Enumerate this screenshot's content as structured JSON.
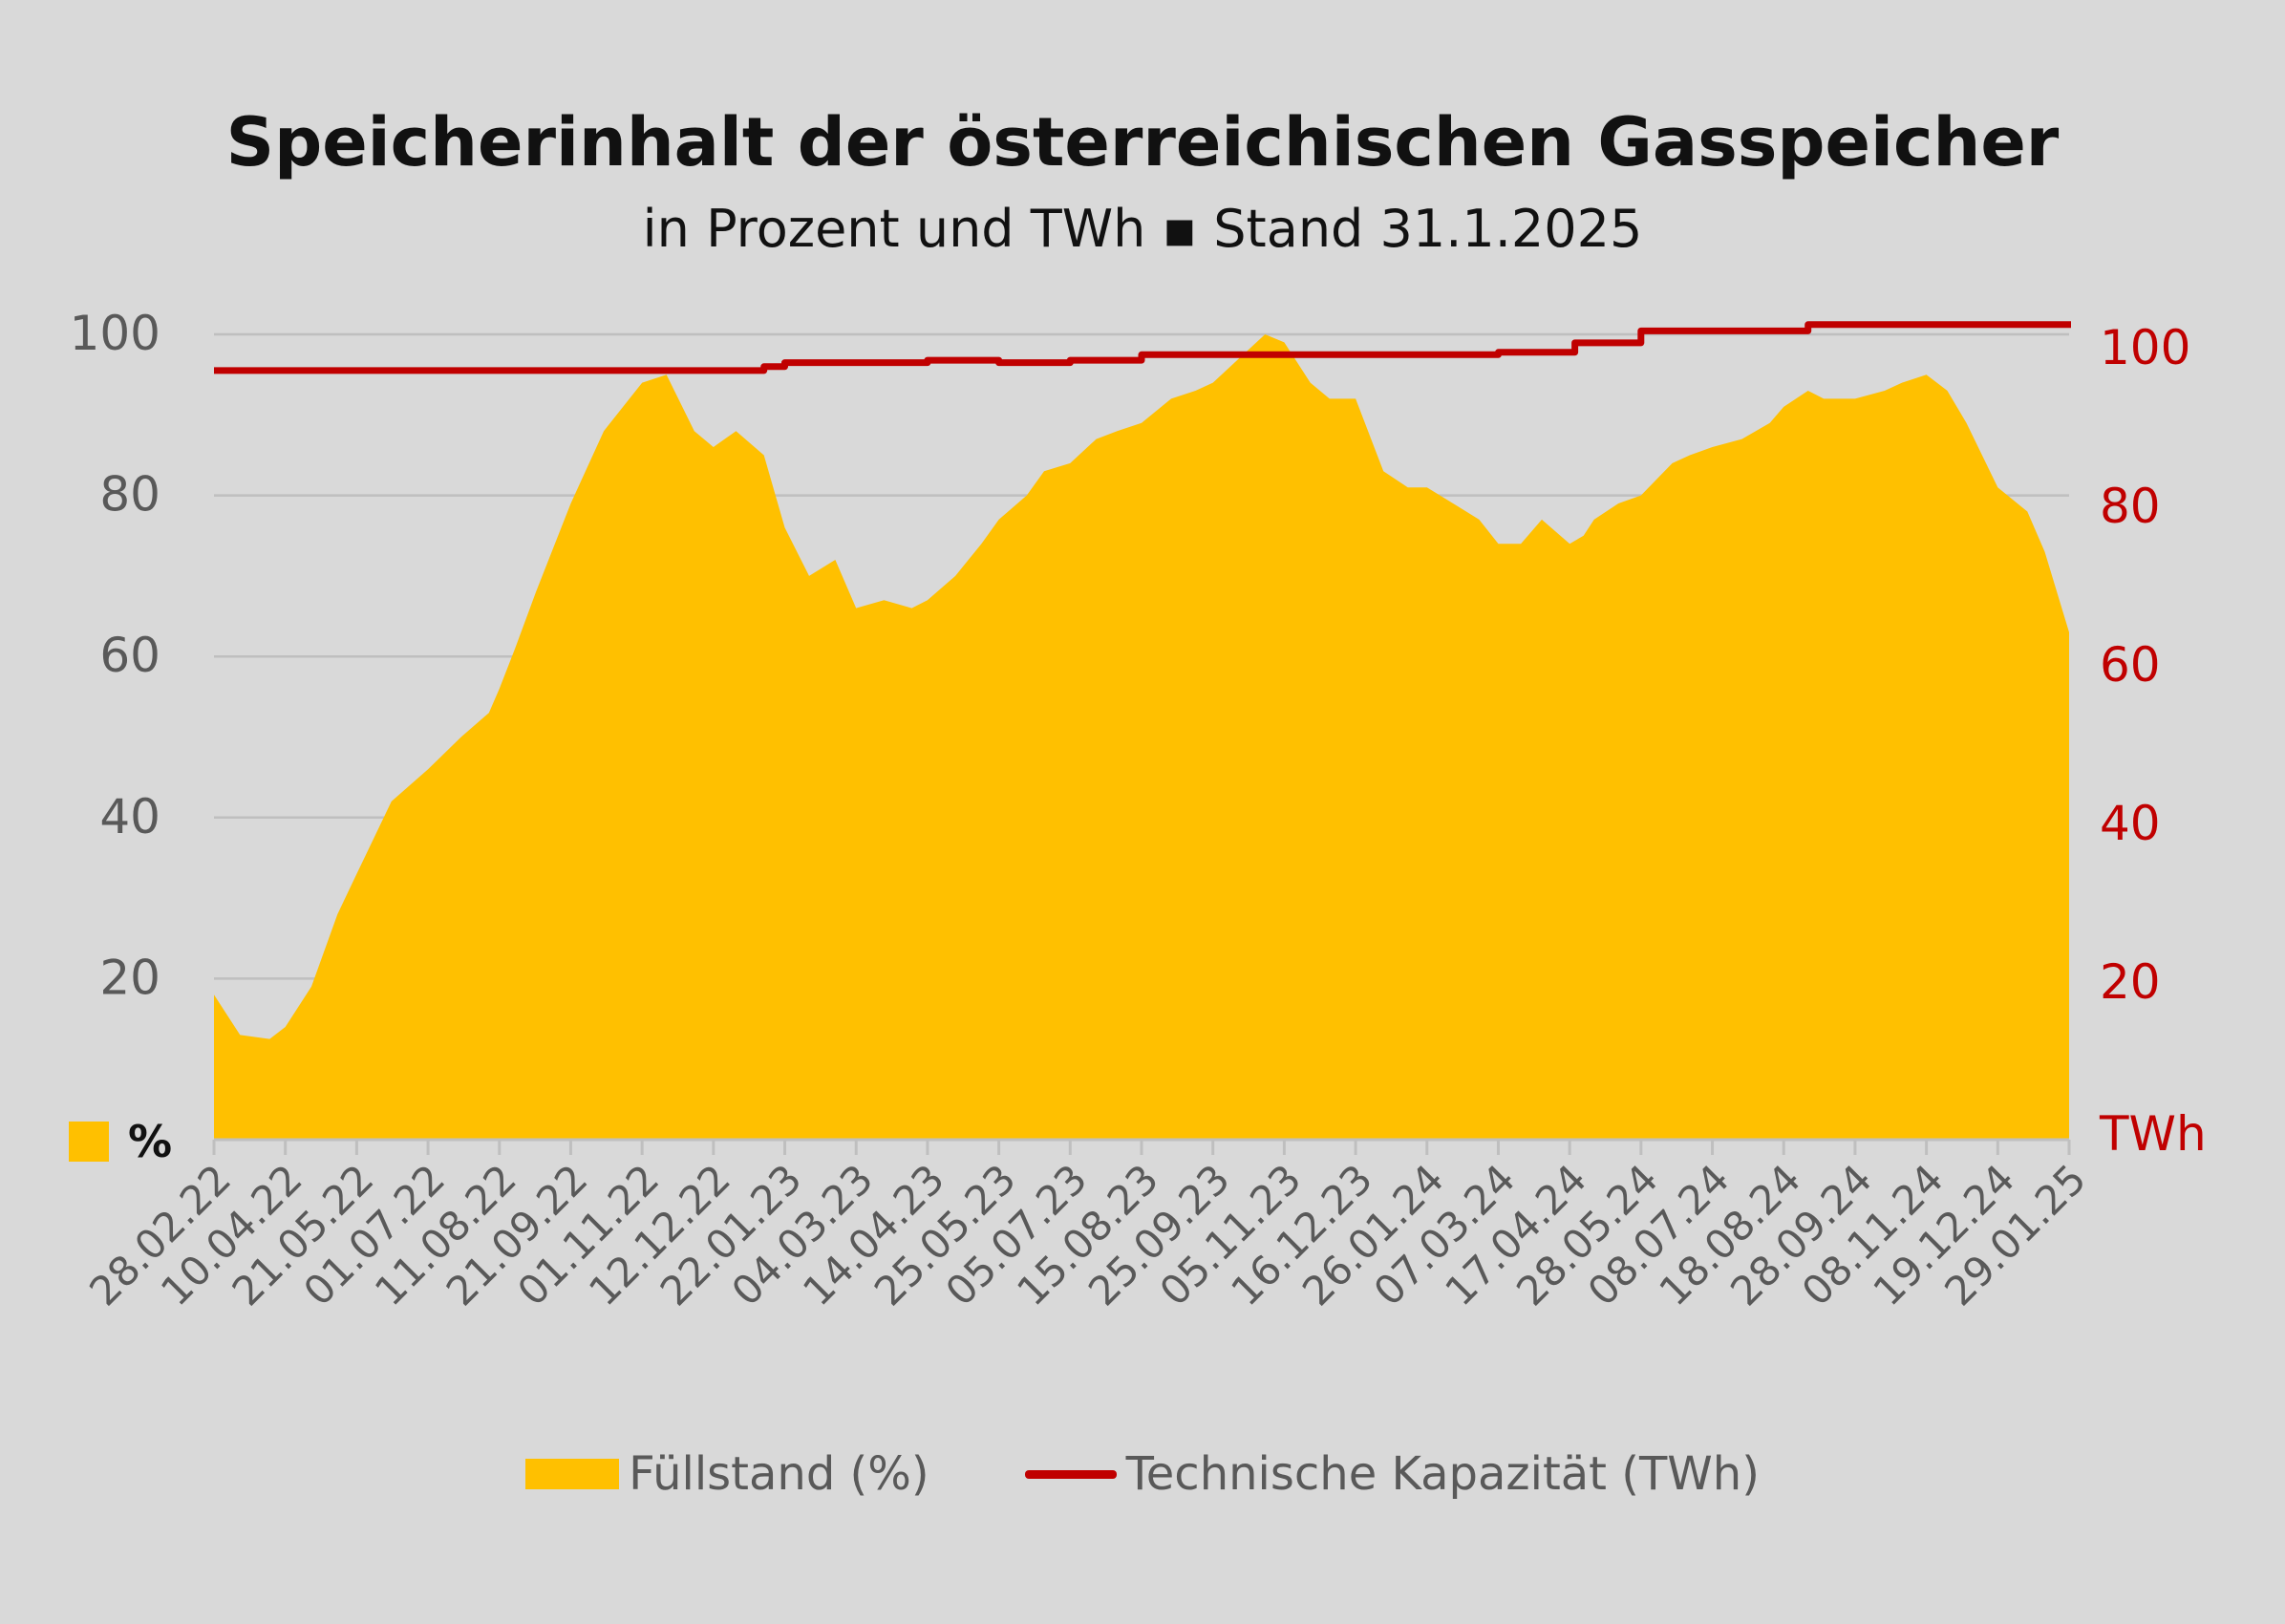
{
  "chart_data": {
    "type": "area",
    "title": "Speicherinhalt der österreichischen Gasspeicher",
    "subtitle": "in Prozent und TWh ▪ Stand 31.1.2025",
    "x_tick_labels": [
      "28.02.22",
      "10.04.22",
      "21.05.22",
      "01.07.22",
      "11.08.22",
      "21.09.22",
      "01.11.22",
      "12.12.22",
      "22.01.23",
      "04.03.23",
      "14.04.23",
      "25.05.23",
      "05.07.23",
      "15.08.23",
      "25.09.23",
      "05.11.23",
      "16.12.23",
      "26.01.24",
      "07.03.24",
      "17.04.24",
      "28.05.24",
      "08.07.24",
      "18.08.24",
      "28.09.24",
      "08.11.24",
      "19.12.24",
      "29.01.25"
    ],
    "y_left": {
      "ticks": [
        20,
        40,
        60,
        80,
        100
      ],
      "ylim": [
        0,
        100
      ],
      "unit": "%"
    },
    "y_right": {
      "ticks": [
        20,
        40,
        60,
        80,
        100
      ],
      "ylim": [
        0,
        102.5
      ],
      "unit": "TWh"
    },
    "grid": true,
    "legend_position": "bottom",
    "series": [
      {
        "name": "Füllstand (%)",
        "type": "area",
        "axis": "left",
        "color": "#ffc000",
        "x": [
          "28.02.22",
          "15.03.22",
          "01.04.22",
          "10.04.22",
          "25.04.22",
          "10.05.22",
          "21.05.22",
          "10.06.22",
          "01.07.22",
          "20.07.22",
          "05.08.22",
          "11.08.22",
          "20.08.22",
          "01.09.22",
          "21.09.22",
          "10.10.22",
          "01.11.22",
          "15.11.22",
          "01.12.22",
          "12.12.22",
          "25.12.22",
          "10.01.23",
          "22.01.23",
          "05.02.23",
          "20.02.23",
          "04.03.23",
          "20.03.23",
          "05.04.23",
          "14.04.23",
          "30.04.23",
          "15.05.23",
          "25.05.23",
          "10.06.23",
          "20.06.23",
          "05.07.23",
          "20.07.23",
          "01.08.23",
          "15.08.23",
          "01.09.23",
          "15.09.23",
          "25.09.23",
          "10.10.23",
          "25.10.23",
          "05.11.23",
          "20.11.23",
          "01.12.23",
          "16.12.23",
          "01.01.24",
          "15.01.24",
          "26.01.24",
          "10.02.24",
          "25.02.24",
          "07.03.24",
          "20.03.24",
          "01.04.24",
          "17.04.24",
          "25.04.24",
          "01.05.24",
          "15.05.24",
          "28.05.24",
          "15.06.24",
          "25.06.24",
          "08.07.24",
          "25.07.24",
          "10.08.24",
          "18.08.24",
          "01.09.24",
          "10.09.24",
          "28.09.24",
          "15.10.24",
          "25.10.24",
          "08.11.24",
          "20.11.24",
          "01.12.24",
          "19.12.24",
          "05.01.25",
          "15.01.25",
          "29.01.25"
        ],
        "values": [
          18,
          13,
          12.5,
          14,
          19,
          28,
          33,
          42,
          46,
          50,
          53,
          56,
          61,
          68,
          79,
          88,
          94,
          95,
          88,
          86,
          88,
          85,
          76,
          70,
          72,
          66,
          67,
          66,
          67,
          70,
          74,
          77,
          80,
          83,
          84,
          87,
          88,
          89,
          92,
          93,
          94,
          97,
          100,
          99,
          94,
          92,
          92,
          83,
          81,
          81,
          79,
          77,
          74,
          74,
          77,
          74,
          75,
          77,
          79,
          80,
          84,
          85,
          86,
          87,
          89,
          91,
          93,
          92,
          92,
          93,
          94,
          95,
          93,
          89,
          81,
          78,
          73,
          63
        ]
      },
      {
        "name": "Technische Kapazität (TWh)",
        "type": "line",
        "axis": "right",
        "color": "#c00000",
        "x": [
          "28.02.22",
          "01.11.22",
          "01.12.22",
          "10.01.23",
          "22.01.23",
          "14.04.23",
          "25.05.23",
          "05.07.23",
          "15.08.23",
          "25.09.23",
          "05.11.23",
          "16.12.23",
          "26.01.24",
          "07.03.24",
          "20.04.24",
          "28.05.24",
          "01.07.24",
          "08.07.24",
          "18.08.24",
          "01.09.24",
          "28.09.24",
          "08.11.24",
          "19.12.24",
          "29.01.25"
        ],
        "values": [
          97,
          97,
          97,
          97.5,
          98,
          98.3,
          98,
          98.3,
          99,
          99,
          99,
          99,
          99,
          99.3,
          100.5,
          102,
          102,
          102,
          102,
          102.8,
          102.8,
          102.8,
          102.8,
          102.8
        ]
      }
    ]
  }
}
